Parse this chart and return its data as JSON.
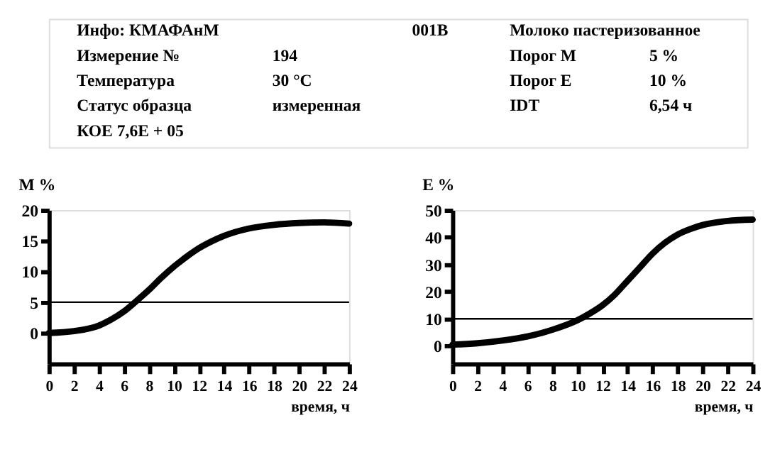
{
  "chart_data": [
    {
      "type": "other",
      "annotations": [
        "Инфо: КМАФАнМ",
        "001В",
        "Молоко пастеризованное",
        "Измерение №",
        "194",
        "Порог М",
        "5 %",
        "Температура",
        "30 °C",
        "Порог Е",
        "10 %",
        "Статус образца",
        "измеренная",
        "IDT",
        "6,54 ч",
        "КОЕ 7,6Е + 05"
      ]
    },
    {
      "type": "line",
      "ylabel": "M %",
      "xlabel": "время, ч",
      "x": [
        0,
        2,
        4,
        5,
        6,
        7,
        8,
        9,
        10,
        11,
        12,
        13,
        14,
        16,
        18,
        20,
        22,
        24
      ],
      "series": [
        {
          "color": "#000000",
          "values": [
            0,
            0.3,
            1.2,
            2.2,
            3.5,
            5.2,
            7,
            9,
            10.8,
            12.4,
            13.8,
            14.9,
            15.8,
            17,
            17.6,
            17.9,
            18,
            17.8
          ]
        }
      ],
      "xlim": [
        0,
        24
      ],
      "xticks": [
        0,
        2,
        4,
        6,
        8,
        10,
        12,
        14,
        16,
        18,
        20,
        22,
        24
      ],
      "ylim": [
        -5,
        20
      ],
      "yticks": [
        0,
        5,
        10,
        15,
        20
      ],
      "ref_lines": [
        {
          "axis": "y",
          "value": 5,
          "color": "#000000"
        }
      ],
      "grid": false,
      "marker": "none",
      "line_style": "solid"
    },
    {
      "type": "line",
      "ylabel": "E %",
      "xlabel": "время, ч",
      "x": [
        0,
        2,
        4,
        6,
        8,
        10,
        11,
        12,
        13,
        14,
        15,
        16,
        17,
        18,
        19,
        20,
        22,
        24
      ],
      "series": [
        {
          "color": "#000000",
          "values": [
            0.5,
            1,
            2,
            3.5,
            6,
            9.5,
            12,
            15,
            19,
            24,
            29,
            34,
            38,
            41,
            43,
            44.5,
            46,
            46.5
          ]
        }
      ],
      "xlim": [
        0,
        24
      ],
      "xticks": [
        0,
        2,
        4,
        6,
        8,
        10,
        12,
        14,
        16,
        18,
        20,
        22,
        24
      ],
      "ylim": [
        -6.5,
        50
      ],
      "yticks": [
        0,
        10,
        20,
        30,
        40,
        50
      ],
      "ref_lines": [
        {
          "axis": "y",
          "value": 10,
          "color": "#000000"
        }
      ],
      "grid": false,
      "marker": "none",
      "line_style": "solid"
    }
  ]
}
